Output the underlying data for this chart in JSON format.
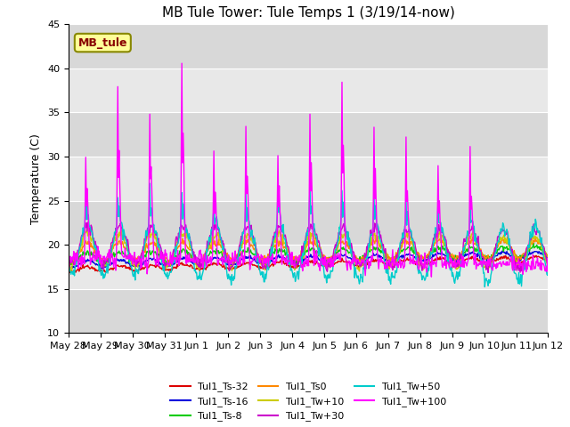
{
  "title": "MB Tule Tower: Tule Temps 1 (3/19/14-now)",
  "ylabel": "Temperature (C)",
  "ylim": [
    10,
    45
  ],
  "yticks": [
    10,
    15,
    20,
    25,
    30,
    35,
    40,
    45
  ],
  "bg_color": "#ffffff",
  "plot_bg_color": "#d8d8d8",
  "band_colors": [
    "#d8d8d8",
    "#e8e8e8"
  ],
  "annotation_text": "MB_tule",
  "annotation_fg": "#880000",
  "annotation_bg": "#ffff99",
  "annotation_border": "#888800",
  "series": [
    {
      "label": "Tul1_Ts-32",
      "color": "#dd0000"
    },
    {
      "label": "Tul1_Ts-16",
      "color": "#0000dd"
    },
    {
      "label": "Tul1_Ts-8",
      "color": "#00cc00"
    },
    {
      "label": "Tul1_Ts0",
      "color": "#ff8800"
    },
    {
      "label": "Tul1_Tw+10",
      "color": "#cccc00"
    },
    {
      "label": "Tul1_Tw+30",
      "color": "#cc00cc"
    },
    {
      "label": "Tul1_Tw+50",
      "color": "#00cccc"
    },
    {
      "label": "Tul1_Tw+100",
      "color": "#ff00ff"
    }
  ],
  "n_days": 15,
  "xticklabels": [
    "May 28",
    "May 29",
    "May 30",
    "May 31",
    "Jun 1",
    "Jun 2",
    "Jun 3",
    "Jun 4",
    "Jun 5",
    "Jun 6",
    "Jun 7",
    "Jun 8",
    "Jun 9",
    "Jun 10",
    "Jun 11",
    "Jun 12"
  ]
}
